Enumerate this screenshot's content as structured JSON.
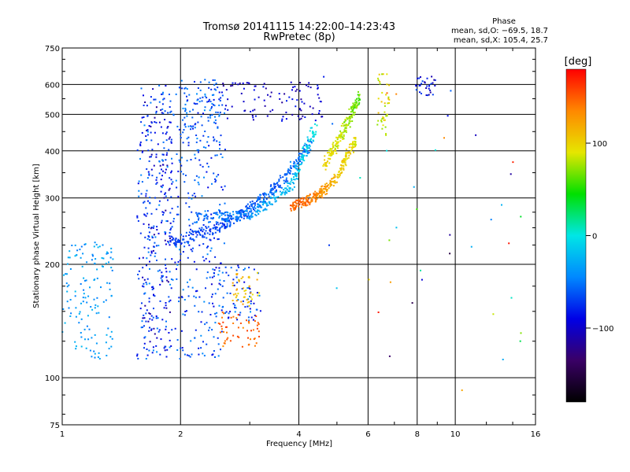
{
  "chart_data": {
    "type": "scatter",
    "title": "Tromsø 20141115 14:22:00–14:23:43",
    "subtitle": "RwPretec (8p)",
    "xlabel": "Frequency [MHz]",
    "ylabel": "Stationary phase Virtual Height [km]",
    "x_scale": "log",
    "y_scale": "log",
    "xlim": [
      1,
      16
    ],
    "ylim": [
      75,
      750
    ],
    "x_ticks": [
      1,
      2,
      4,
      6,
      8,
      10,
      16
    ],
    "y_ticks": [
      75,
      100,
      200,
      300,
      400,
      500,
      600,
      750
    ],
    "x_tick_labels": [
      "1",
      "2",
      "4",
      "6",
      "8",
      "10",
      "16"
    ],
    "y_tick_labels": [
      "75",
      "100",
      "200",
      "300",
      "400",
      "500",
      "600",
      "750"
    ],
    "grid": true,
    "stats": {
      "heading": "Phase",
      "line_o": "mean, sd,O: −69.5, 18.7",
      "line_x": "mean, sd,X: 105.4, 25.7"
    },
    "colorbar": {
      "label": "[deg]",
      "range": [
        -180,
        180
      ],
      "ticks": [
        100,
        0,
        -100
      ],
      "tick_labels": [
        "100",
        "0",
        "−100"
      ],
      "colors": [
        "#000000",
        "#3a0066",
        "#0000e6",
        "#0088ff",
        "#00e6e6",
        "#00e000",
        "#e6e600",
        "#ff8800",
        "#ff0000"
      ]
    },
    "groups": [
      {
        "x": [
          1.6,
          1.9
        ],
        "y": [
          115,
          600
        ],
        "phase": [
          -120,
          -60
        ]
      },
      {
        "x": [
          1.55,
          2.6
        ],
        "y": [
          112,
          600
        ],
        "phase": [
          -90,
          -40
        ]
      },
      {
        "x": [
          2.0,
          2.6
        ],
        "y": [
          420,
          620
        ],
        "phase": [
          -80,
          -40
        ]
      },
      {
        "x": [
          2.5,
          4.6
        ],
        "y": [
          480,
          610
        ],
        "phase": [
          -120,
          -80
        ]
      },
      {
        "x": [
          1.0,
          1.35
        ],
        "y": [
          112,
          230
        ],
        "phase": [
          -50,
          -20
        ]
      },
      {
        "x": [
          2.4,
          3.2
        ],
        "y": [
          140,
          200
        ],
        "phase": [
          -100,
          -40
        ]
      },
      {
        "x": [
          2.7,
          3.2
        ],
        "y": [
          155,
          190
        ],
        "phase": [
          90,
          130
        ]
      },
      {
        "x": [
          2.5,
          3.2
        ],
        "y": [
          120,
          150
        ],
        "phase": [
          130,
          160
        ]
      },
      {
        "x": [
          6.3,
          6.8
        ],
        "y": [
          440,
          640
        ],
        "phase": [
          70,
          110
        ]
      },
      {
        "x": [
          7.9,
          8.9
        ],
        "y": [
          560,
          630
        ],
        "phase": [
          -120,
          -60
        ]
      }
    ],
    "curves": [
      {
        "x": [
          1.9,
          2.5,
          3.0,
          3.6,
          4.3
        ],
        "y": [
          230,
          250,
          280,
          330,
          420
        ],
        "phase": [
          -70,
          -70,
          -60,
          -60,
          -50
        ]
      },
      {
        "x": [
          2.2,
          3.0,
          3.8,
          4.4
        ],
        "y": [
          265,
          270,
          320,
          460
        ],
        "phase": [
          -60,
          -40,
          -20,
          0
        ]
      },
      {
        "x": [
          3.8,
          4.4,
          5.0,
          5.6
        ],
        "y": [
          285,
          300,
          340,
          430
        ],
        "phase": [
          150,
          140,
          110,
          90
        ]
      },
      {
        "x": [
          4.6,
          5.2,
          5.7
        ],
        "y": [
          360,
          450,
          560
        ],
        "phase": [
          100,
          80,
          60
        ]
      }
    ]
  }
}
